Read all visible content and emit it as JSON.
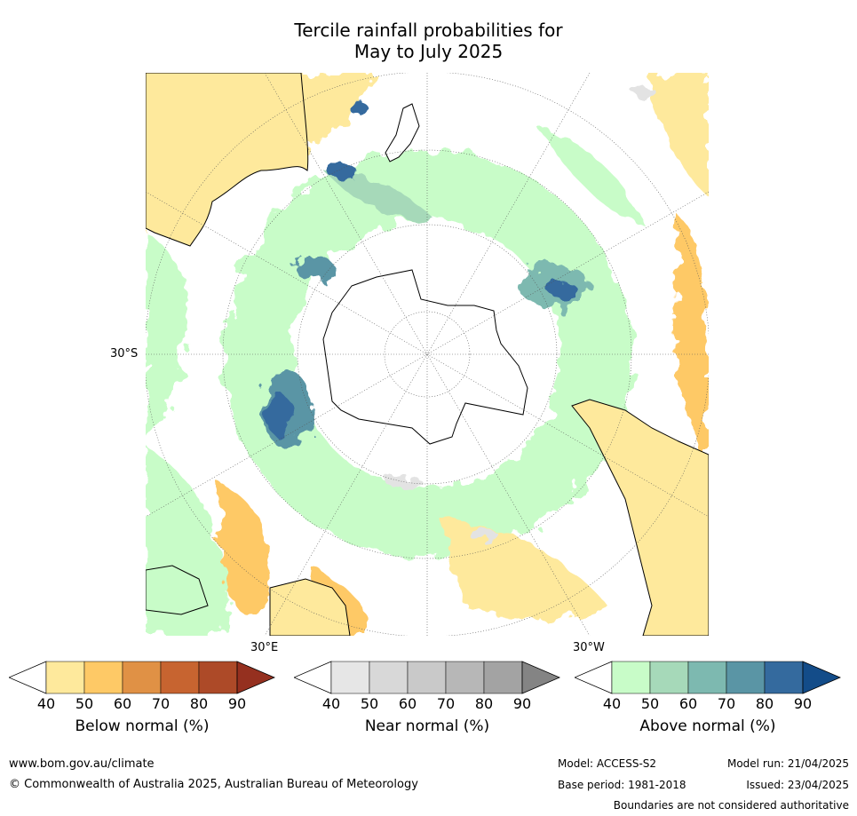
{
  "title": {
    "line1": "Tercile rainfall probabilities for",
    "line2": "May to July 2025"
  },
  "map": {
    "projection": "south-polar-stereographic",
    "latitude_labels": [
      "30°S"
    ],
    "longitude_labels": [
      "30°E",
      "30°W"
    ],
    "colors": {
      "ocean_base": "#ffffff",
      "below_light": "#fee99c",
      "below_mid": "#fec966",
      "near": "#e3e3e3",
      "above_light": "#c8fcc8",
      "above_mid": "#a6d9b9",
      "above_dark": "#5b96a8",
      "above_darker": "#346a9e",
      "coast": "#000000",
      "grid": "#555555"
    }
  },
  "colorbars": [
    {
      "id": "below",
      "label": "Below normal (%)",
      "ticks": [
        "40",
        "50",
        "60",
        "70",
        "80",
        "90"
      ],
      "colors": [
        "#ffffff",
        "#fee99c",
        "#fec966",
        "#e09145",
        "#c76430",
        "#ad4a28",
        "#95301f"
      ]
    },
    {
      "id": "near",
      "label": "Near normal (%)",
      "ticks": [
        "40",
        "50",
        "60",
        "70",
        "80",
        "90"
      ],
      "colors": [
        "#ffffff",
        "#e6e6e6",
        "#d8d8d8",
        "#c9c9c9",
        "#b7b7b7",
        "#a3a3a3",
        "#848484"
      ]
    },
    {
      "id": "above",
      "label": "Above normal (%)",
      "ticks": [
        "40",
        "50",
        "60",
        "70",
        "80",
        "90"
      ],
      "colors": [
        "#ffffff",
        "#c8fcc8",
        "#a6d9b9",
        "#7db9b0",
        "#5a95a5",
        "#346a9e",
        "#134c89"
      ]
    }
  ],
  "footer": {
    "url": "www.bom.gov.au/climate",
    "copyright": "© Commonwealth of Australia 2025, Australian Bureau of Meteorology",
    "model": "Model: ACCESS-S2",
    "model_run": "Model run: 21/04/2025",
    "base_period": "Base period: 1981-2018",
    "issued": "Issued: 23/04/2025",
    "disclaimer": "Boundaries are not considered authoritative"
  }
}
